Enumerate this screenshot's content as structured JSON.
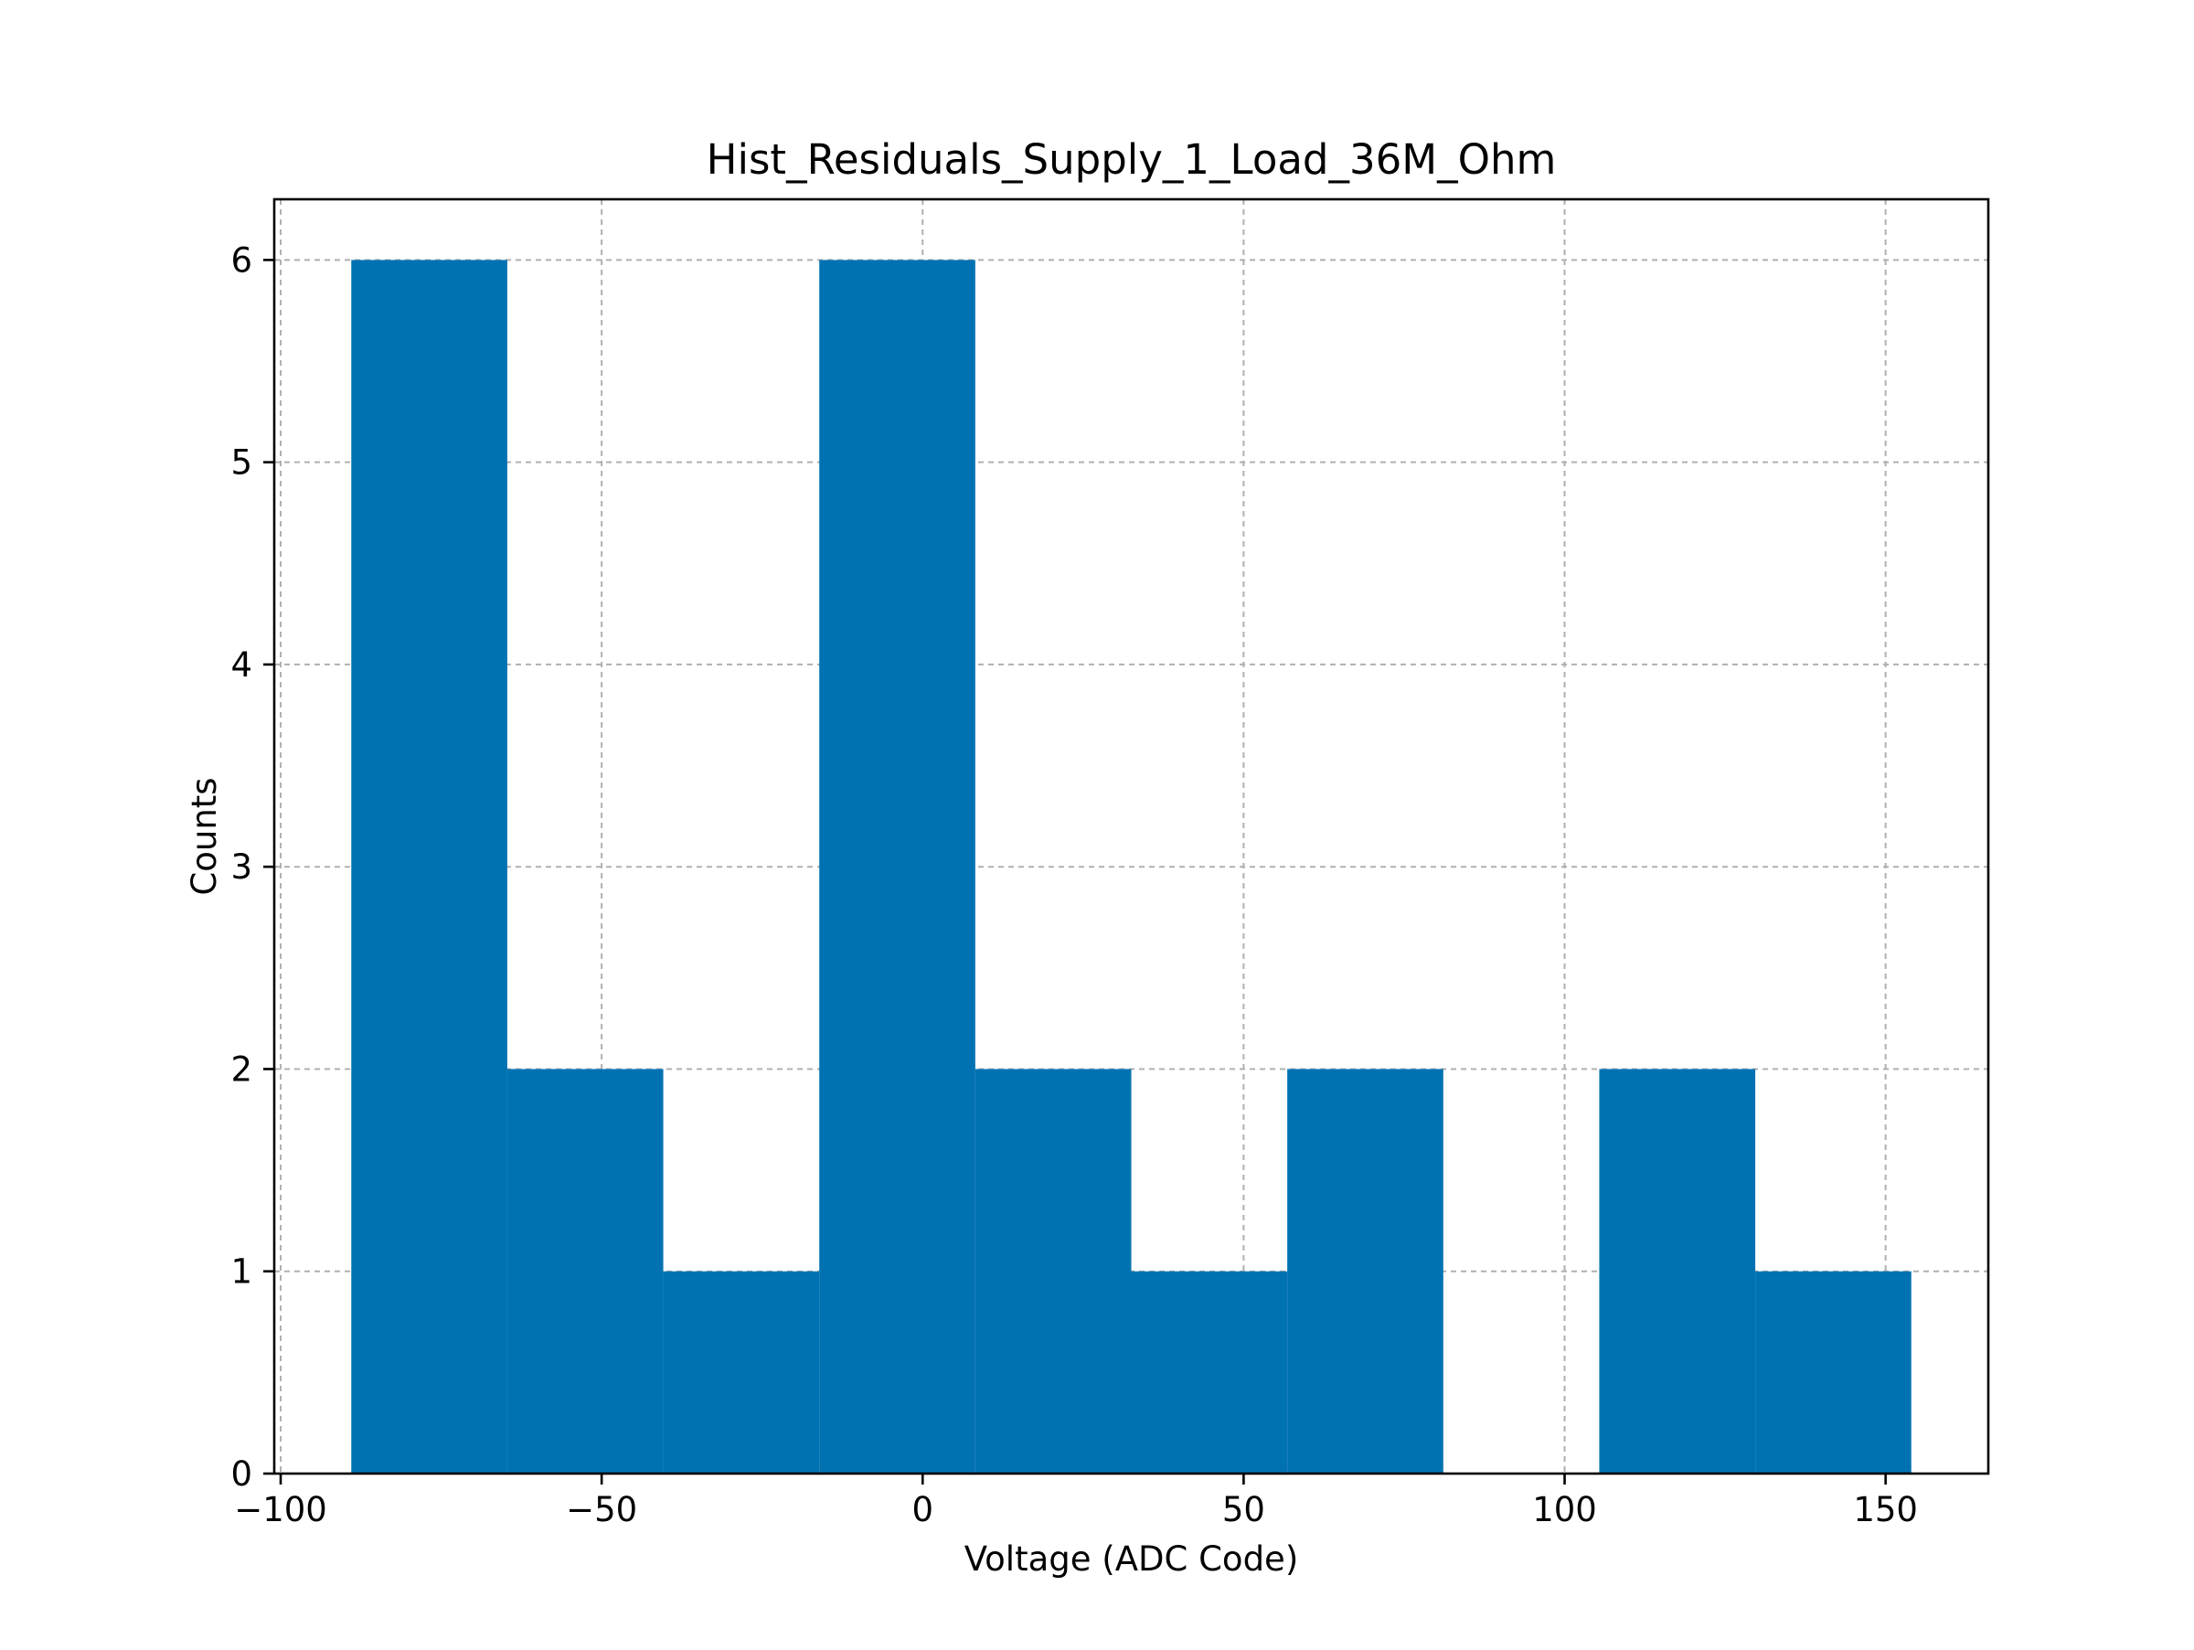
{
  "chart_data": {
    "type": "bar",
    "title": "Hist_Residuals_Supply_1_Load_36M_Ohm",
    "xlabel": "Voltage (ADC Code)",
    "ylabel": "Counts",
    "xlim": [
      -101,
      166
    ],
    "ylim": [
      0,
      6.3
    ],
    "x_ticks": [
      {
        "value": -100,
        "label": "−100"
      },
      {
        "value": -50,
        "label": "−50"
      },
      {
        "value": 0,
        "label": "0"
      },
      {
        "value": 50,
        "label": "50"
      },
      {
        "value": 100,
        "label": "100"
      },
      {
        "value": 150,
        "label": "150"
      }
    ],
    "y_ticks": [
      {
        "value": 0,
        "label": "0"
      },
      {
        "value": 1,
        "label": "1"
      },
      {
        "value": 2,
        "label": "2"
      },
      {
        "value": 3,
        "label": "3"
      },
      {
        "value": 4,
        "label": "4"
      },
      {
        "value": 5,
        "label": "5"
      },
      {
        "value": 6,
        "label": "6"
      }
    ],
    "bins": [
      {
        "start": -89.0,
        "end": -64.7,
        "count": 6
      },
      {
        "start": -64.7,
        "end": -40.4,
        "count": 2
      },
      {
        "start": -40.4,
        "end": -16.1,
        "count": 1
      },
      {
        "start": -16.1,
        "end": 8.2,
        "count": 6
      },
      {
        "start": 8.2,
        "end": 32.5,
        "count": 2
      },
      {
        "start": 32.5,
        "end": 56.8,
        "count": 1
      },
      {
        "start": 56.8,
        "end": 81.1,
        "count": 2
      },
      {
        "start": 81.1,
        "end": 105.4,
        "count": 0
      },
      {
        "start": 105.4,
        "end": 129.7,
        "count": 2
      },
      {
        "start": 129.7,
        "end": 154.0,
        "count": 1
      }
    ],
    "grid": true,
    "bar_color": "#0072B2"
  }
}
